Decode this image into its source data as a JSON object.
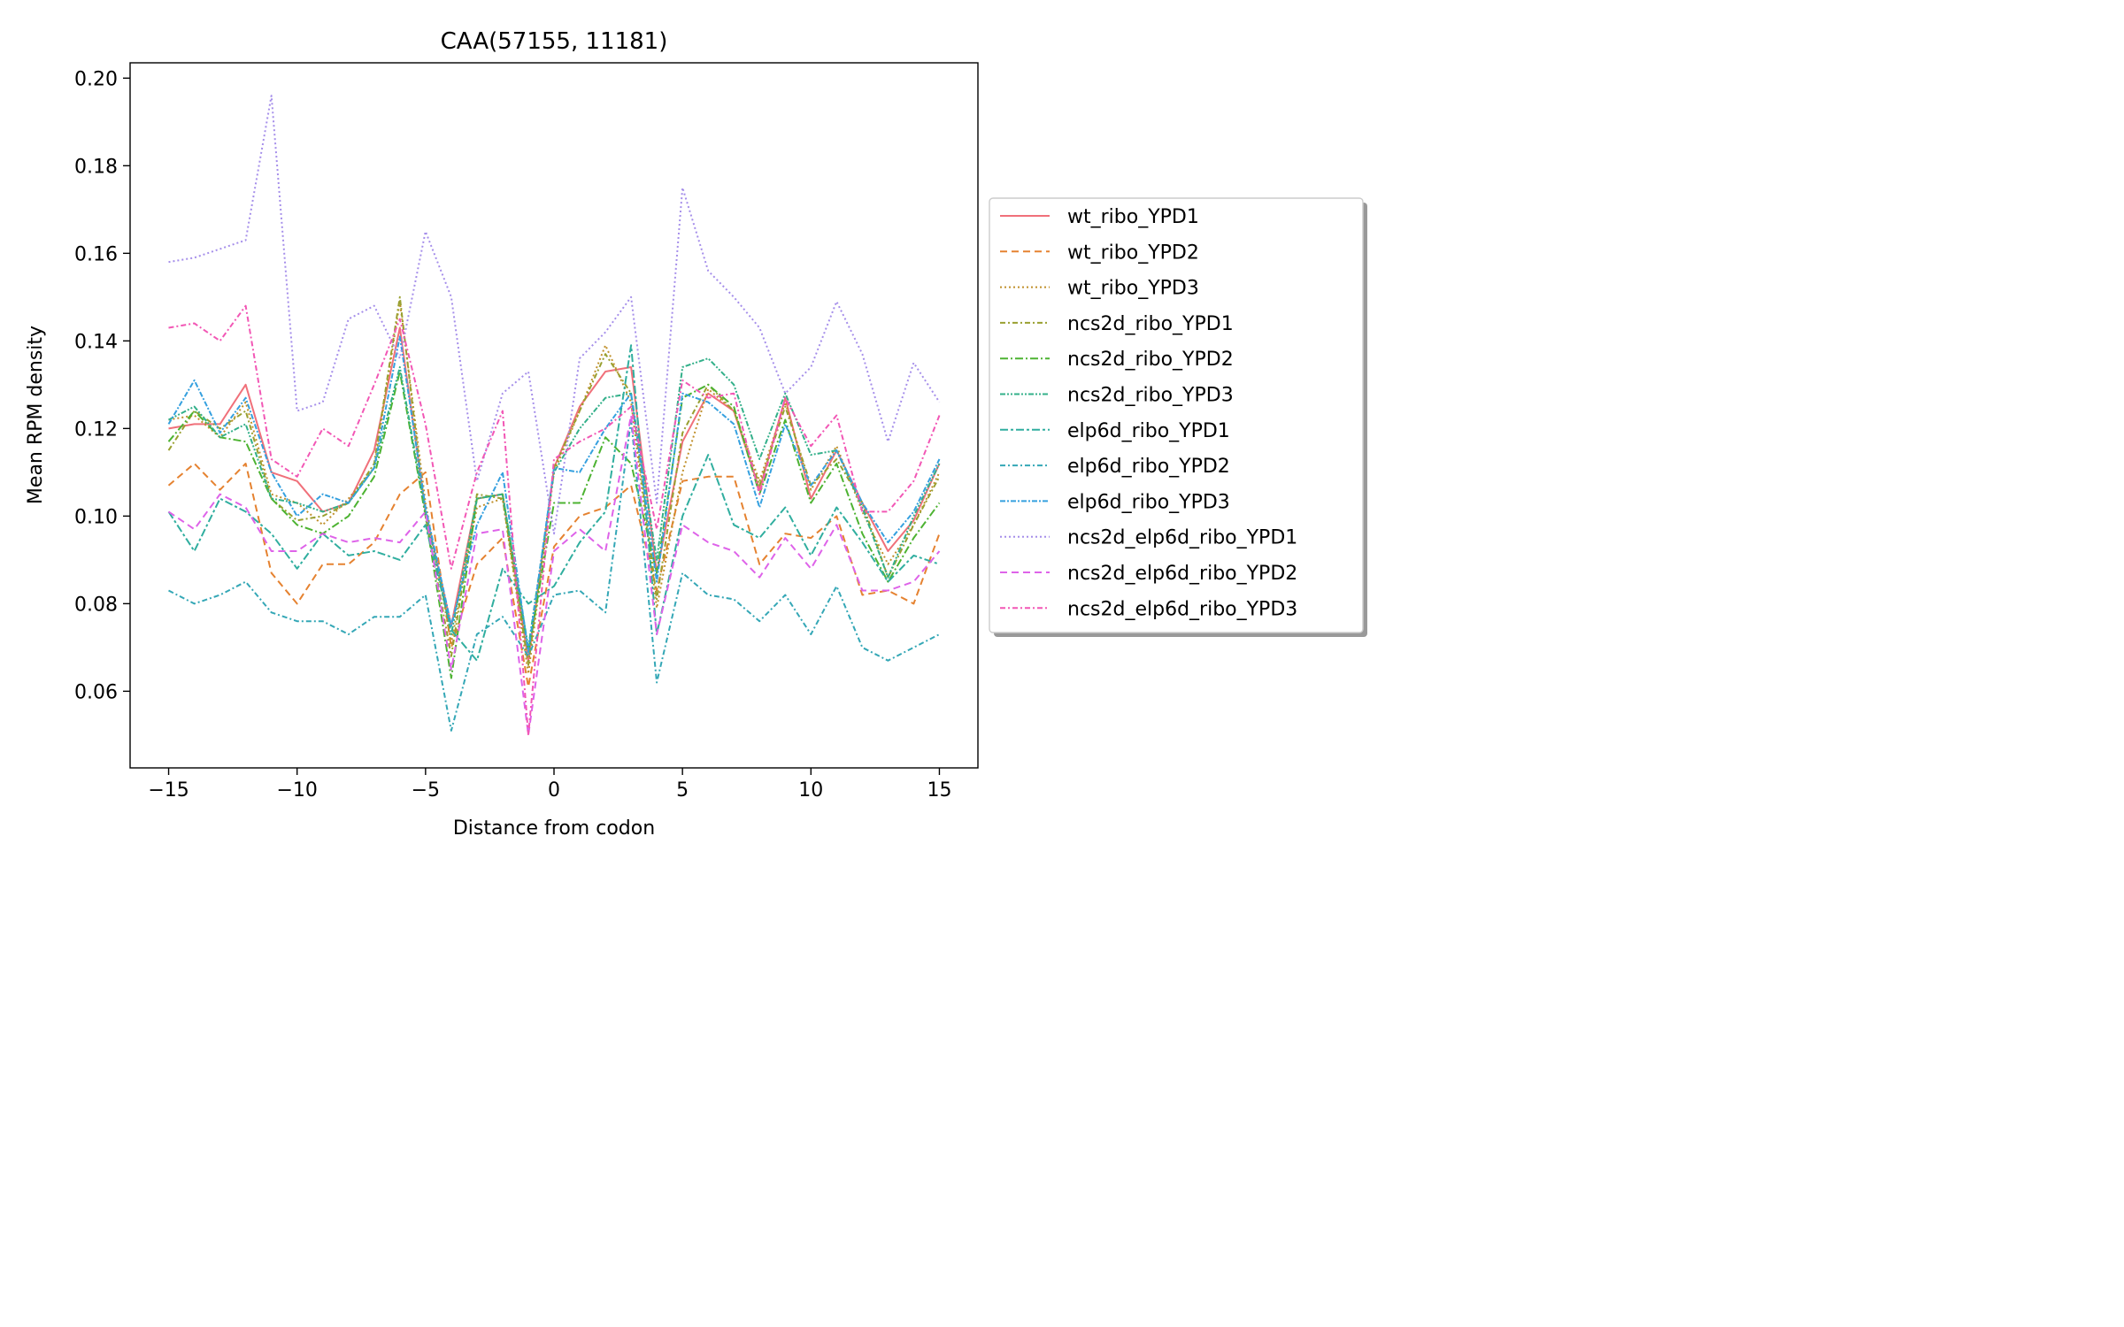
{
  "chart_data": {
    "type": "line",
    "title": "CAA(57155, 11181)",
    "xlabel": "Distance from codon",
    "ylabel": "Mean RPM density",
    "xlim": [
      -16.5,
      16.5
    ],
    "ylim": [
      0.0425,
      0.2035
    ],
    "xticks": [
      -15,
      -10,
      -5,
      0,
      5,
      10,
      15
    ],
    "xtick_labels": [
      "−15",
      "−10",
      "−5",
      "0",
      "5",
      "10",
      "15"
    ],
    "yticks": [
      0.06,
      0.08,
      0.1,
      0.12,
      0.14,
      0.16,
      0.18,
      0.2
    ],
    "ytick_labels": [
      "0.06",
      "0.08",
      "0.10",
      "0.12",
      "0.14",
      "0.16",
      "0.18",
      "0.20"
    ],
    "grid": false,
    "legend_position": "outside-right",
    "x": [
      -15,
      -14,
      -13,
      -12,
      -11,
      -10,
      -9,
      -8,
      -7,
      -6,
      -5,
      -4,
      -3,
      -2,
      -1,
      0,
      1,
      2,
      3,
      4,
      5,
      6,
      7,
      8,
      9,
      10,
      11,
      12,
      13,
      14,
      15
    ],
    "series": [
      {
        "name": "wt_ribo_YPD1",
        "color": "#f0707a",
        "dash": "",
        "values": [
          0.12,
          0.121,
          0.121,
          0.13,
          0.11,
          0.108,
          0.101,
          0.103,
          0.115,
          0.143,
          0.101,
          0.075,
          0.104,
          0.105,
          0.067,
          0.111,
          0.125,
          0.133,
          0.134,
          0.087,
          0.117,
          0.128,
          0.124,
          0.106,
          0.127,
          0.104,
          0.115,
          0.103,
          0.092,
          0.099,
          0.112
        ]
      },
      {
        "name": "wt_ribo_YPD2",
        "color": "#e58230",
        "dash": "8,5",
        "values": [
          0.107,
          0.112,
          0.106,
          0.112,
          0.087,
          0.08,
          0.089,
          0.089,
          0.094,
          0.105,
          0.11,
          0.07,
          0.089,
          0.095,
          0.061,
          0.093,
          0.1,
          0.102,
          0.107,
          0.083,
          0.108,
          0.109,
          0.109,
          0.089,
          0.096,
          0.095,
          0.1,
          0.082,
          0.083,
          0.08,
          0.096
        ]
      },
      {
        "name": "wt_ribo_YPD3",
        "color": "#c0902b",
        "dash": "2,3",
        "values": [
          0.122,
          0.123,
          0.118,
          0.126,
          0.105,
          0.103,
          0.098,
          0.104,
          0.111,
          0.149,
          0.103,
          0.071,
          0.102,
          0.104,
          0.064,
          0.11,
          0.124,
          0.139,
          0.126,
          0.079,
          0.11,
          0.129,
          0.124,
          0.108,
          0.126,
          0.106,
          0.116,
          0.101,
          0.089,
          0.098,
          0.11
        ]
      },
      {
        "name": "ncs2d_ribo_YPD1",
        "color": "#99a030",
        "dash": "6,3,2,3",
        "values": [
          0.115,
          0.124,
          0.12,
          0.124,
          0.104,
          0.099,
          0.1,
          0.103,
          0.112,
          0.15,
          0.1,
          0.068,
          0.105,
          0.104,
          0.066,
          0.111,
          0.124,
          0.137,
          0.128,
          0.081,
          0.119,
          0.13,
          0.124,
          0.107,
          0.125,
          0.107,
          0.113,
          0.103,
          0.086,
          0.098,
          0.109
        ]
      },
      {
        "name": "ncs2d_ribo_YPD2",
        "color": "#4db332",
        "dash": "9,3,2,3",
        "values": [
          0.117,
          0.124,
          0.118,
          0.117,
          0.104,
          0.098,
          0.096,
          0.1,
          0.109,
          0.133,
          0.1,
          0.063,
          0.104,
          0.105,
          0.069,
          0.103,
          0.103,
          0.118,
          0.112,
          0.087,
          0.127,
          0.13,
          0.125,
          0.105,
          0.122,
          0.103,
          0.112,
          0.096,
          0.085,
          0.095,
          0.103
        ]
      },
      {
        "name": "ncs2d_ribo_YPD3",
        "color": "#33b08a",
        "dash": "6,2,2,2,2,2",
        "values": [
          0.122,
          0.125,
          0.118,
          0.121,
          0.104,
          0.103,
          0.101,
          0.103,
          0.111,
          0.134,
          0.101,
          0.073,
          0.104,
          0.105,
          0.07,
          0.11,
          0.12,
          0.127,
          0.128,
          0.09,
          0.134,
          0.136,
          0.13,
          0.113,
          0.128,
          0.114,
          0.115,
          0.102,
          0.086,
          0.1,
          0.112
        ]
      },
      {
        "name": "elp6d_ribo_YPD1",
        "color": "#30ae9f",
        "dash": "9,3,3,3",
        "values": [
          0.101,
          0.092,
          0.104,
          0.101,
          0.096,
          0.088,
          0.096,
          0.091,
          0.092,
          0.09,
          0.098,
          0.074,
          0.067,
          0.088,
          0.08,
          0.084,
          0.094,
          0.101,
          0.139,
          0.073,
          0.1,
          0.114,
          0.098,
          0.095,
          0.102,
          0.091,
          0.102,
          0.094,
          0.085,
          0.091,
          0.089
        ]
      },
      {
        "name": "elp6d_ribo_YPD2",
        "color": "#34a7b6",
        "dash": "6,3,2,3",
        "values": [
          0.083,
          0.08,
          0.082,
          0.085,
          0.078,
          0.076,
          0.076,
          0.073,
          0.077,
          0.077,
          0.082,
          0.051,
          0.073,
          0.077,
          0.068,
          0.082,
          0.083,
          0.078,
          0.122,
          0.062,
          0.087,
          0.082,
          0.081,
          0.076,
          0.082,
          0.073,
          0.084,
          0.07,
          0.067,
          0.07,
          0.073
        ]
      },
      {
        "name": "elp6d_ribo_YPD3",
        "color": "#35a0df",
        "dash": "6,2,2,2",
        "values": [
          0.121,
          0.131,
          0.119,
          0.127,
          0.11,
          0.1,
          0.105,
          0.103,
          0.111,
          0.141,
          0.102,
          0.075,
          0.098,
          0.11,
          0.069,
          0.111,
          0.11,
          0.12,
          0.128,
          0.085,
          0.128,
          0.126,
          0.121,
          0.102,
          0.121,
          0.107,
          0.115,
          0.103,
          0.094,
          0.101,
          0.113
        ]
      },
      {
        "name": "ncs2d_elp6d_ribo_YPD1",
        "color": "#a58eea",
        "dash": "2,3",
        "values": [
          0.158,
          0.159,
          0.161,
          0.163,
          0.196,
          0.124,
          0.126,
          0.145,
          0.148,
          0.136,
          0.165,
          0.15,
          0.108,
          0.128,
          0.133,
          0.096,
          0.136,
          0.142,
          0.15,
          0.103,
          0.175,
          0.156,
          0.15,
          0.143,
          0.128,
          0.134,
          0.149,
          0.137,
          0.117,
          0.135,
          0.126
        ]
      },
      {
        "name": "ncs2d_elp6d_ribo_YPD2",
        "color": "#de63e9",
        "dash": "8,5",
        "values": [
          0.101,
          0.097,
          0.105,
          0.102,
          0.092,
          0.092,
          0.096,
          0.094,
          0.095,
          0.094,
          0.101,
          0.065,
          0.096,
          0.097,
          0.05,
          0.092,
          0.097,
          0.092,
          0.123,
          0.073,
          0.098,
          0.094,
          0.092,
          0.086,
          0.095,
          0.088,
          0.098,
          0.083,
          0.083,
          0.085,
          0.092
        ]
      },
      {
        "name": "ncs2d_elp6d_ribo_YPD3",
        "color": "#f257b5",
        "dash": "6,3,2,3",
        "values": [
          0.143,
          0.144,
          0.14,
          0.148,
          0.113,
          0.109,
          0.12,
          0.116,
          0.13,
          0.145,
          0.121,
          0.088,
          0.11,
          0.124,
          0.05,
          0.113,
          0.117,
          0.12,
          0.125,
          0.097,
          0.131,
          0.127,
          0.128,
          0.105,
          0.127,
          0.116,
          0.123,
          0.101,
          0.101,
          0.108,
          0.123
        ]
      }
    ]
  }
}
